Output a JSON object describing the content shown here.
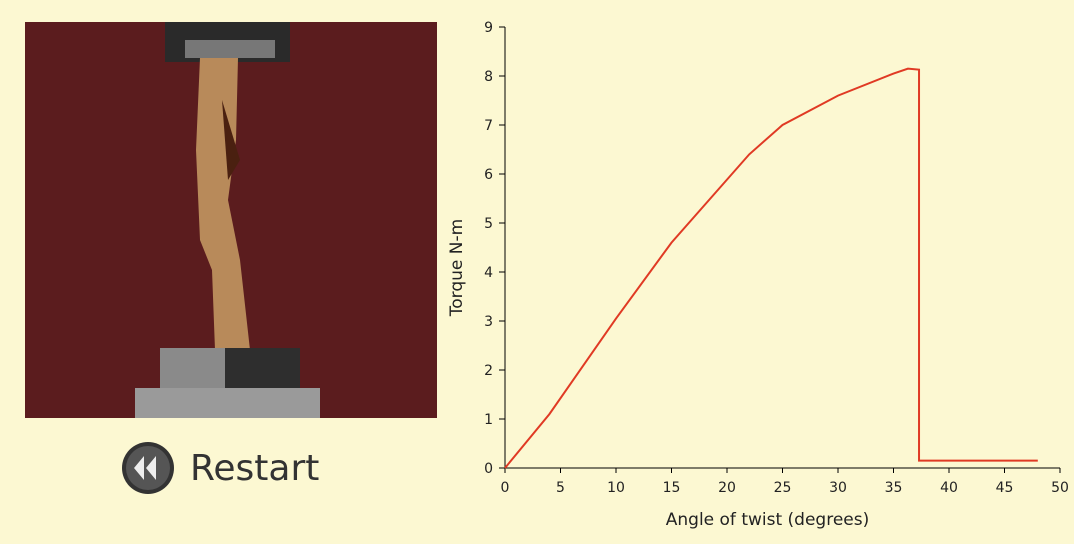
{
  "button": {
    "label": "Restart"
  },
  "chart_data": {
    "type": "line",
    "xlabel": "Angle of twist (degrees)",
    "ylabel": "Torque N-m",
    "series": [
      {
        "name": null,
        "color": "#e03a24",
        "x": [
          0,
          4,
          10,
          15,
          22,
          25,
          30,
          35,
          36.3,
          37.3,
          37.3,
          48
        ],
        "values": [
          0,
          1.1,
          3.05,
          4.6,
          6.4,
          7,
          7.6,
          8.05,
          8.15,
          8.13,
          0.15,
          0.15
        ]
      }
    ],
    "xlim": [
      0,
      50
    ],
    "xticks": [
      0,
      5,
      10,
      15,
      20,
      25,
      30,
      35,
      40,
      45,
      50
    ],
    "ylim": [
      0,
      9
    ],
    "yticks": [
      0,
      1,
      2,
      3,
      4,
      5,
      6,
      7,
      8,
      9
    ]
  }
}
